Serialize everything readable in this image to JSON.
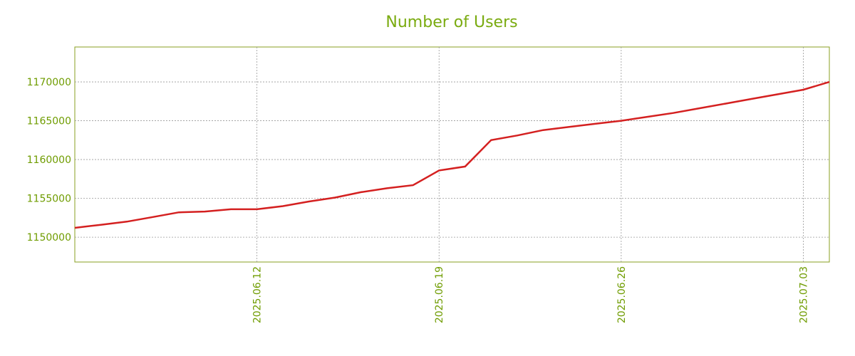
{
  "chart_data": {
    "type": "line",
    "title": "Number of Users",
    "x": [
      "2025.06.05",
      "2025.06.06",
      "2025.06.07",
      "2025.06.08",
      "2025.06.09",
      "2025.06.10",
      "2025.06.11",
      "2025.06.12",
      "2025.06.13",
      "2025.06.14",
      "2025.06.15",
      "2025.06.16",
      "2025.06.17",
      "2025.06.18",
      "2025.06.19",
      "2025.06.20",
      "2025.06.21",
      "2025.06.22",
      "2025.06.23",
      "2025.06.24",
      "2025.06.25",
      "2025.06.26",
      "2025.06.27",
      "2025.06.28",
      "2025.06.29",
      "2025.06.30",
      "2025.07.01",
      "2025.07.02",
      "2025.07.03",
      "2025.07.04"
    ],
    "series": [
      {
        "color": "#d42020",
        "values": [
          1151200,
          1151600,
          1152000,
          1152600,
          1153200,
          1153300,
          1153600,
          1153600,
          1154000,
          1154600,
          1155100,
          1155800,
          1156300,
          1156700,
          1158600,
          1159100,
          1162500,
          1163100,
          1163800,
          1164200,
          1164600,
          1165000,
          1165500,
          1166000,
          1166600,
          1167200,
          1167800,
          1168400,
          1169000,
          1170000
        ]
      }
    ],
    "xlim": [
      "2025.06.05",
      "2025.07.04"
    ],
    "xticks": [
      "2025.06.12",
      "2025.06.19",
      "2025.06.26",
      "2025.07.03"
    ],
    "ylim": [
      1146800,
      1174500
    ],
    "yticks": [
      1150000,
      1155000,
      1160000,
      1165000,
      1170000
    ],
    "grid": true
  }
}
